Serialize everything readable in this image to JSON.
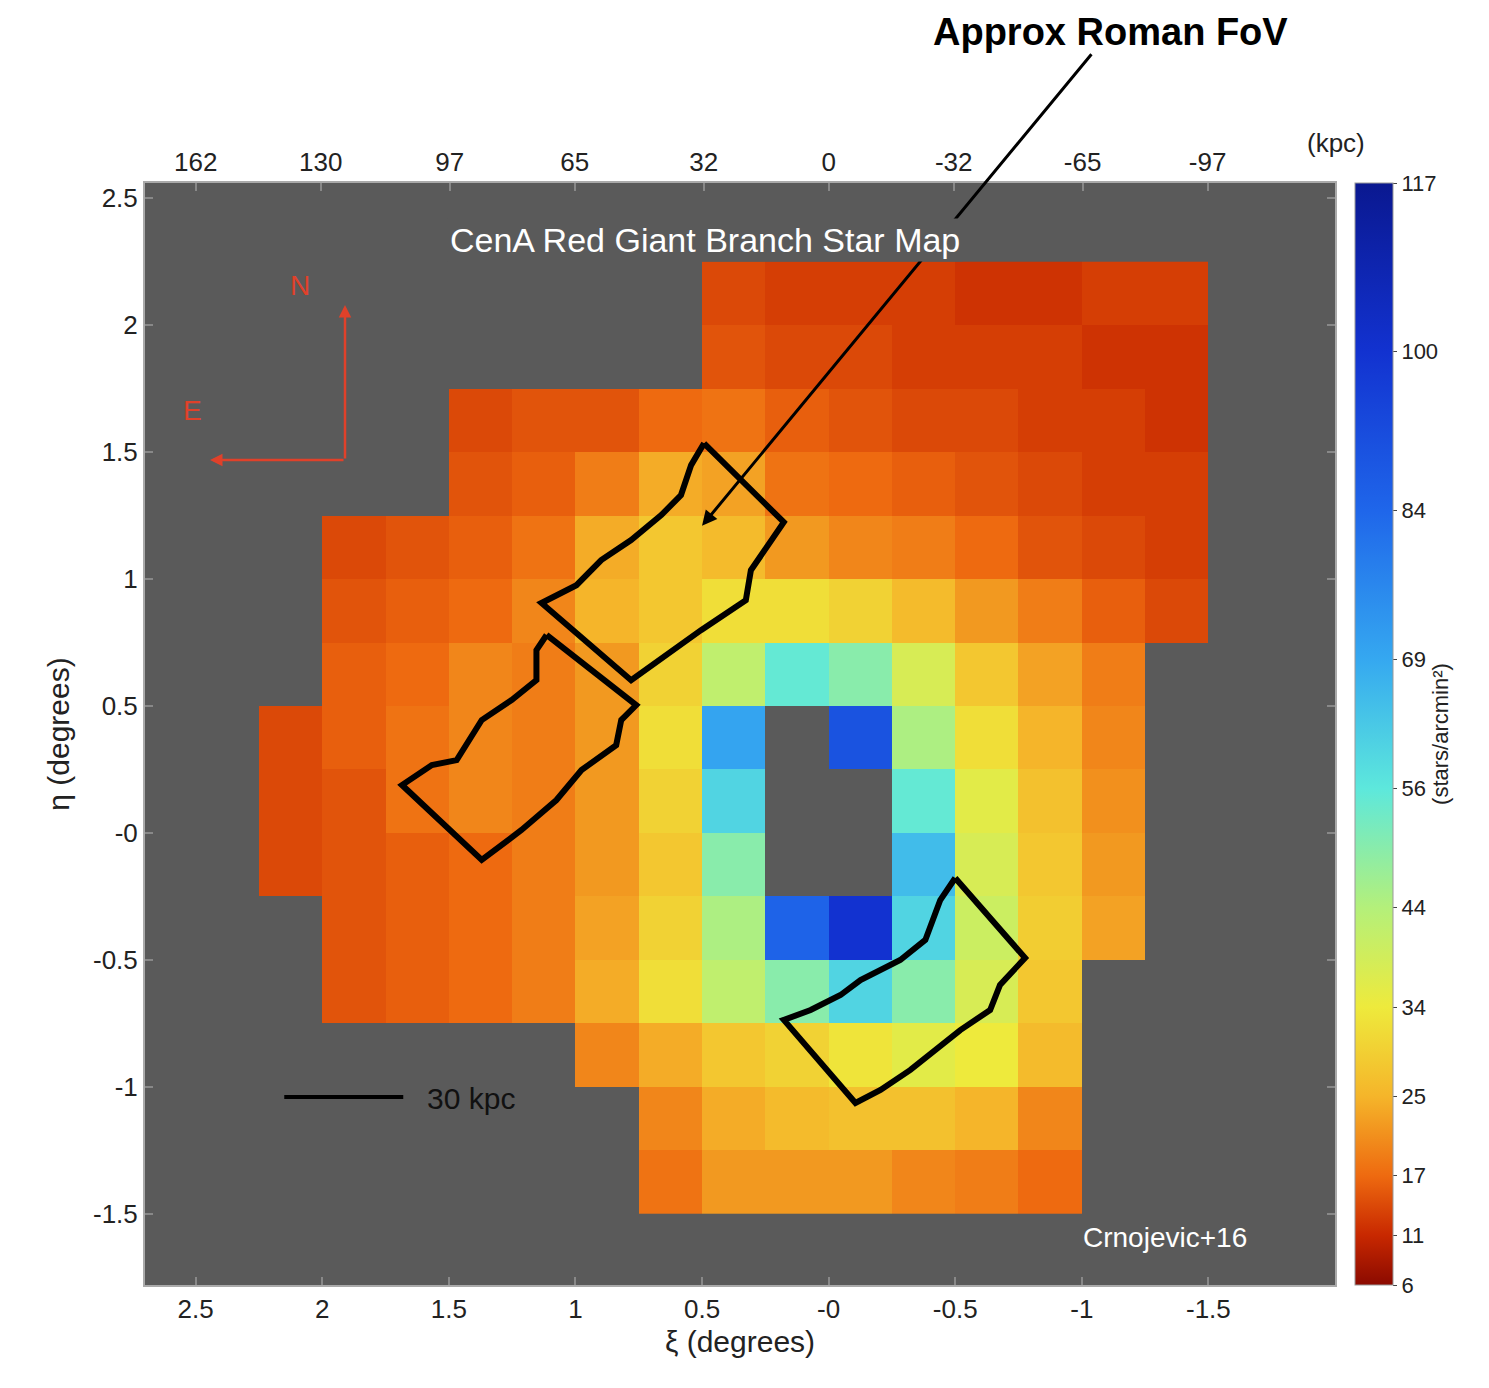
{
  "chart_data": {
    "type": "heatmap",
    "title": "CenA Red Giant Branch Star Map",
    "x_label": "ξ (degrees)",
    "y_label": "η (degrees)",
    "x": [
      2.375,
      2.125,
      1.875,
      1.625,
      1.375,
      1.125,
      0.875,
      0.625,
      0.375,
      0.125,
      -0.125,
      -0.375,
      -0.625,
      -0.875,
      -1.125,
      -1.375,
      -1.625
    ],
    "y": [
      -1.375,
      -1.125,
      -0.875,
      -0.625,
      -0.375,
      -0.125,
      0.125,
      0.375,
      0.625,
      0.875,
      1.125,
      1.375,
      1.625,
      1.875,
      2.125
    ],
    "z": [
      [
        null,
        null,
        null,
        null,
        null,
        null,
        null,
        18,
        22,
        22,
        22,
        20,
        19,
        17,
        null,
        null,
        null
      ],
      [
        null,
        null,
        null,
        null,
        null,
        null,
        null,
        20,
        24,
        26,
        27,
        27,
        25,
        20,
        null,
        null,
        null
      ],
      [
        null,
        null,
        null,
        null,
        null,
        null,
        20,
        24,
        28,
        30,
        33,
        36,
        34,
        26,
        null,
        null,
        null
      ],
      [
        null,
        null,
        15,
        16,
        17,
        19,
        24,
        32,
        42,
        50,
        60,
        50,
        38,
        28,
        null,
        null,
        null
      ],
      [
        null,
        null,
        15,
        16,
        17,
        19,
        23,
        30,
        45,
        85,
        100,
        60,
        40,
        29,
        23,
        null,
        null
      ],
      [
        null,
        14,
        15,
        16,
        17,
        19,
        22,
        28,
        50,
        null,
        null,
        65,
        38,
        28,
        22,
        null,
        null
      ],
      [
        null,
        14,
        15,
        18,
        20,
        19,
        22,
        30,
        60,
        null,
        null,
        55,
        36,
        27,
        21,
        null,
        null
      ],
      [
        null,
        14,
        16,
        18,
        20,
        19,
        22,
        32,
        70,
        null,
        90,
        45,
        32,
        25,
        20,
        null,
        null
      ],
      [
        null,
        null,
        16,
        17,
        20,
        19,
        22,
        30,
        42,
        55,
        50,
        38,
        28,
        23,
        19,
        null,
        null
      ],
      [
        null,
        null,
        15,
        16,
        17,
        20,
        25,
        28,
        32,
        32,
        30,
        26,
        22,
        19,
        16,
        14,
        null
      ],
      [
        null,
        null,
        14,
        15,
        16,
        18,
        24,
        28,
        26,
        22,
        20,
        19,
        17,
        15,
        14,
        13,
        null
      ],
      [
        null,
        null,
        null,
        null,
        15,
        16,
        19,
        24,
        23,
        18,
        17,
        16,
        15,
        14,
        13,
        13,
        null
      ],
      [
        null,
        null,
        null,
        null,
        14,
        15,
        15,
        17,
        18,
        16,
        15,
        14,
        14,
        13,
        13,
        12,
        null
      ],
      [
        null,
        null,
        null,
        null,
        null,
        null,
        null,
        null,
        15,
        14,
        14,
        13,
        13,
        13,
        12,
        12,
        null
      ],
      [
        null,
        null,
        null,
        null,
        null,
        null,
        null,
        null,
        14,
        13,
        13,
        13,
        12,
        12,
        13,
        13,
        null
      ]
    ],
    "xlim": [
      2.7,
      -2.0
    ],
    "ylim": [
      -1.78,
      2.56
    ],
    "xticks": [
      2.5,
      2,
      1.5,
      1,
      0.5,
      {
        "value": 0,
        "label": "-0"
      },
      -0.5,
      -1,
      -1.5
    ],
    "yticks": [
      -1.5,
      -1,
      -0.5,
      {
        "value": 0,
        "label": "-0"
      },
      0.5,
      1,
      1.5,
      2,
      2.5
    ],
    "x2_label": "(kpc)",
    "x2lim": [
      175,
      -129.6
    ],
    "x2ticks": [
      162,
      130,
      97,
      65,
      32,
      0,
      -32,
      -65,
      -97
    ],
    "colorbar": {
      "title": "(stars/arcmin²)",
      "range": [
        6,
        117
      ],
      "ticks": [
        6,
        11,
        17,
        25,
        34,
        44,
        56,
        69,
        84,
        100,
        117
      ]
    },
    "footprints": [
      {
        "xi": [
          0.492,
          0.177,
          0.307,
          0.327,
          0.504,
          0.642,
          0.78,
          1.134,
          0.996,
          0.898,
          0.78,
          0.661,
          0.583,
          0.543
        ],
        "eta": [
          1.535,
          1.224,
          1.035,
          0.917,
          0.799,
          0.701,
          0.602,
          0.906,
          0.976,
          1.075,
          1.154,
          1.252,
          1.331,
          1.449
        ]
      },
      {
        "xi": [
          1.114,
          0.76,
          0.819,
          0.839,
          0.976,
          1.075,
          1.213,
          1.37,
          1.685,
          1.567,
          1.469,
          1.37,
          1.252,
          1.154,
          1.154
        ],
        "eta": [
          0.78,
          0.504,
          0.445,
          0.346,
          0.248,
          0.13,
          0.012,
          -0.106,
          0.189,
          0.268,
          0.287,
          0.445,
          0.524,
          0.602,
          0.72
        ]
      },
      {
        "xi": [
          -0.5,
          -0.776,
          -0.677,
          -0.638,
          -0.52,
          -0.421,
          -0.323,
          -0.205,
          -0.106,
          0.177,
          0.071,
          -0.047,
          -0.126,
          -0.283,
          -0.382,
          -0.441
        ],
        "eta": [
          -0.177,
          -0.492,
          -0.598,
          -0.697,
          -0.776,
          -0.854,
          -0.933,
          -1.012,
          -1.063,
          -0.736,
          -0.697,
          -0.638,
          -0.579,
          -0.5,
          -0.421,
          -0.264
        ]
      }
    ],
    "annotations": [
      {
        "text": "Approx Roman FoV",
        "xi": 0.5,
        "eta": 1.21
      }
    ],
    "compass": {
      "north": "N",
      "east": "E"
    },
    "scale_bar": {
      "label": "30 kpc",
      "xi": [
        2.15,
        1.68
      ],
      "eta": -1.04
    },
    "credit": "Crnojevic+16"
  }
}
